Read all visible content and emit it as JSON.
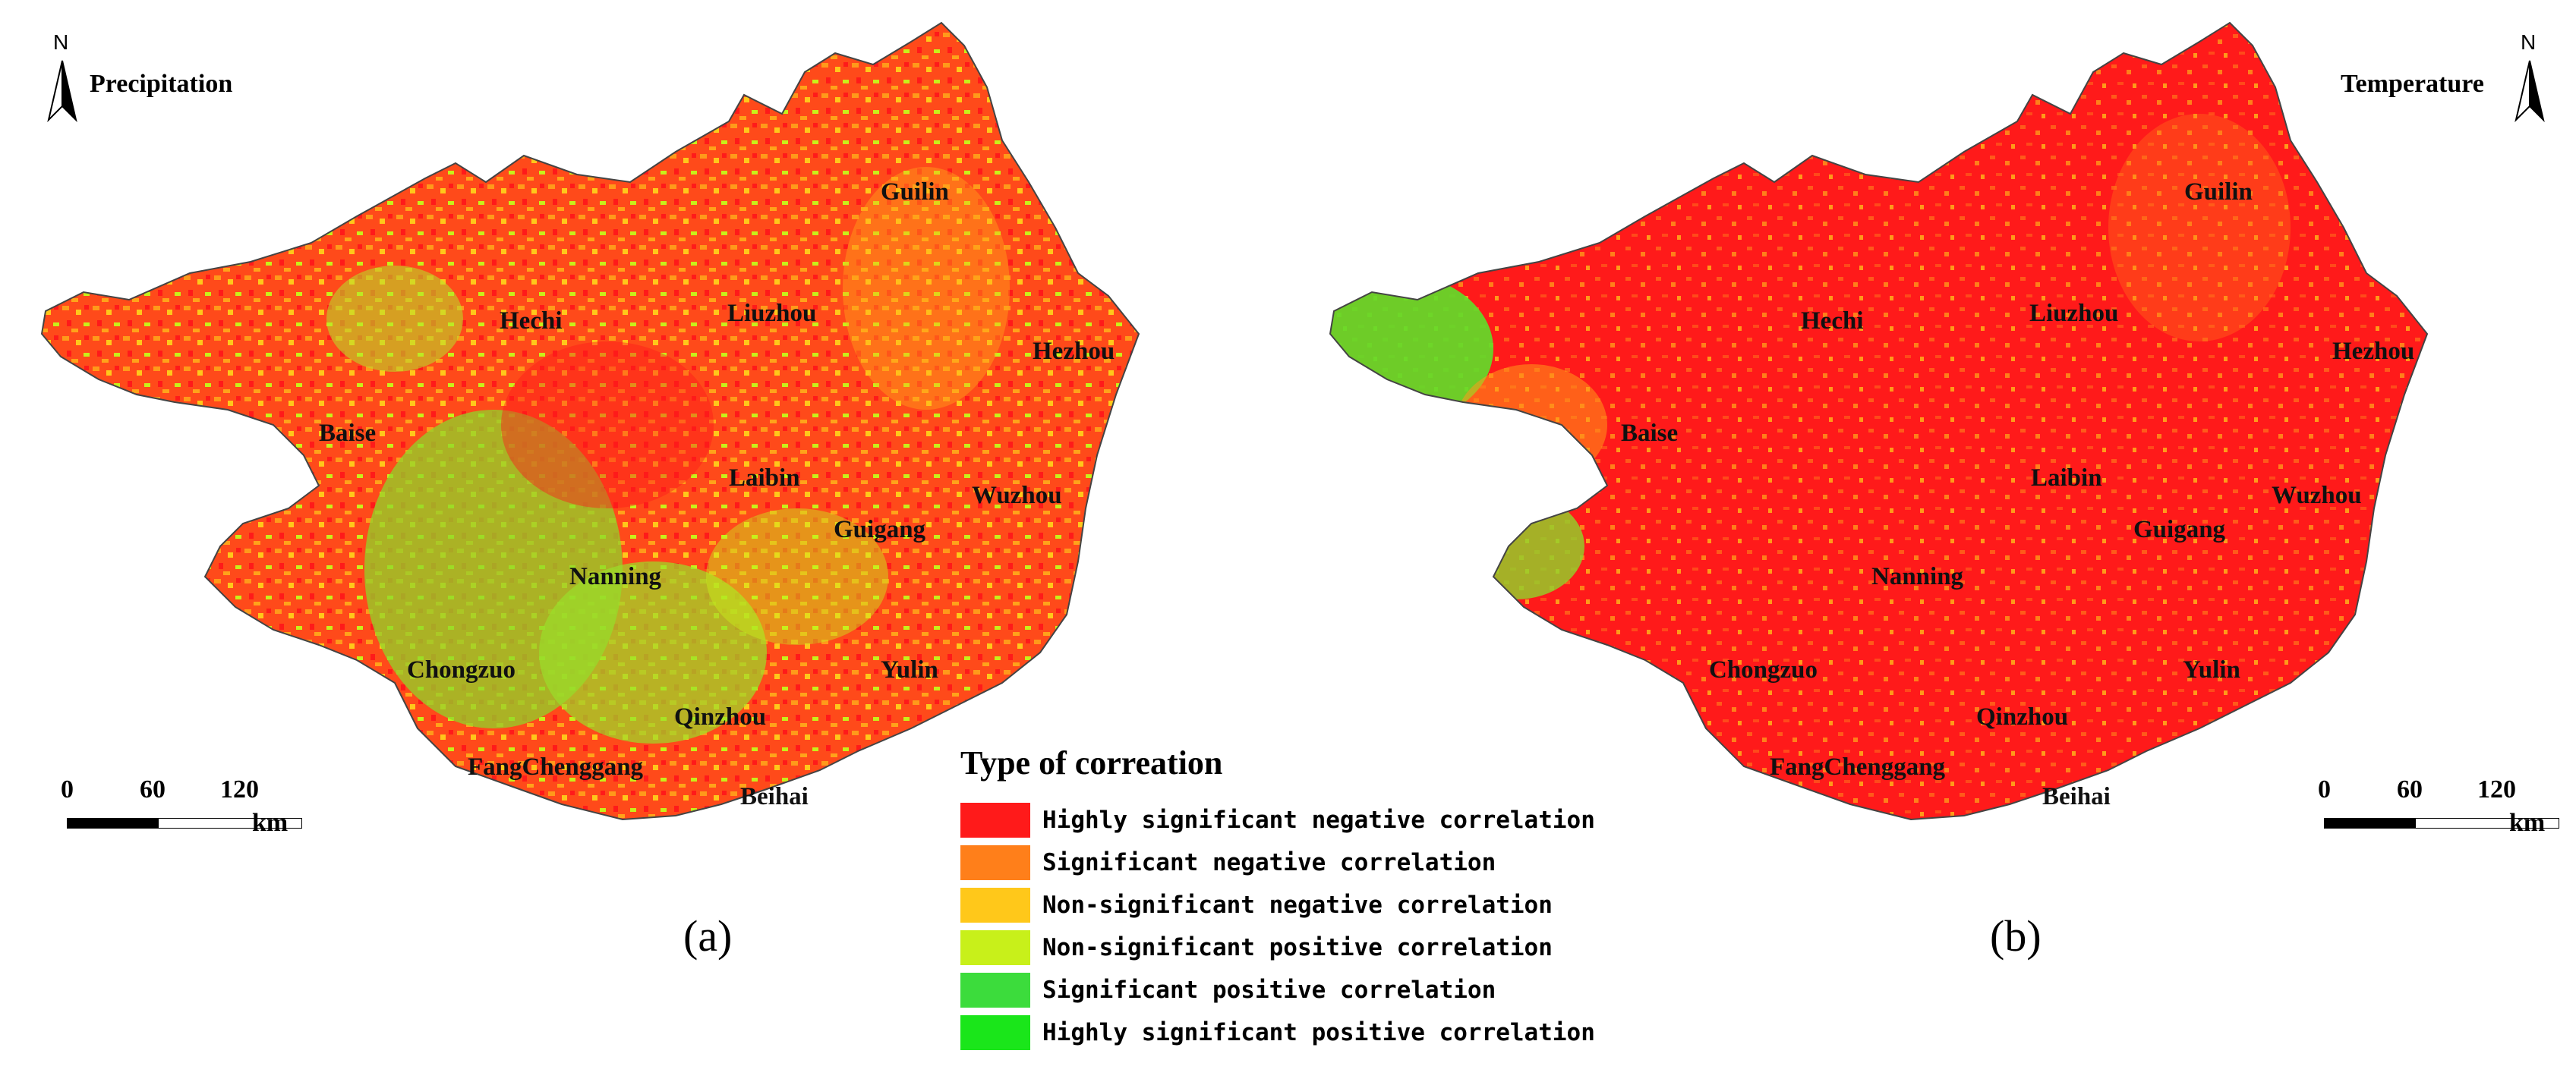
{
  "panels": {
    "a": {
      "variable": "Precipitation",
      "caption": "(a)",
      "north_letter": "N",
      "scale": {
        "ticks": [
          "0",
          "60",
          "120"
        ],
        "unit": "km"
      },
      "places": [
        "Guilin",
        "Hechi",
        "Liuzhou",
        "Hezhou",
        "Baise",
        "Laibin",
        "Wuzhou",
        "Guigang",
        "Nanning",
        "Yulin",
        "Chongzuo",
        "Qinzhou",
        "FangChenggang",
        "Beihai"
      ]
    },
    "b": {
      "variable": "Temperature",
      "caption": "(b)",
      "north_letter": "N",
      "scale": {
        "ticks": [
          "0",
          "60",
          "120"
        ],
        "unit": "km"
      },
      "places": [
        "Guilin",
        "Hechi",
        "Liuzhou",
        "Hezhou",
        "Baise",
        "Laibin",
        "Wuzhou",
        "Guigang",
        "Nanning",
        "Yulin",
        "Chongzuo",
        "Qinzhou",
        "FangChenggang",
        "Beihai"
      ]
    }
  },
  "legend": {
    "title": "Type of correation",
    "items": [
      {
        "label": "Highly significant negative correlation",
        "color": "#ff1a1a"
      },
      {
        "label": "Significant negative correlation",
        "color": "#ff7f1a"
      },
      {
        "label": "Non-significant negative correlation",
        "color": "#ffc81a"
      },
      {
        "label": "Non-significant positive correlation",
        "color": "#c8f01a"
      },
      {
        "label": "Significant positive correlation",
        "color": "#3cdc3c"
      },
      {
        "label": "Highly significant positive correlation",
        "color": "#1ae61a"
      }
    ]
  }
}
